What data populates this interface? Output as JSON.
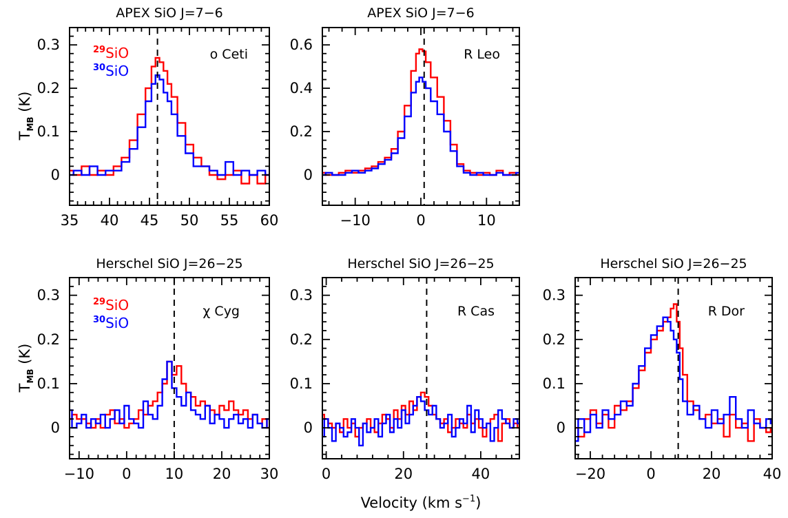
{
  "colors": {
    "si29": "#ff0000",
    "si30": "#0000ff",
    "frame": "#000000"
  },
  "labels": {
    "ylabel": "T",
    "ylabel_sub": "MB",
    "ylabel_unit": " (K)",
    "xlabel": "Velocity (km s",
    "xlabel_sup": "−1",
    "xlabel_end": ")",
    "iso29_mass": "29",
    "iso30_mass": "30",
    "iso_name": "SiO"
  },
  "chart_data": [
    {
      "type": "line",
      "step": true,
      "title": "APEX SiO J=7−6",
      "star": "o Ceti",
      "xlim": [
        35,
        60
      ],
      "ylim": [
        -0.07,
        0.34
      ],
      "xticks": [
        35,
        40,
        45,
        50,
        55,
        60
      ],
      "yticks": [
        0,
        0.1,
        0.2,
        0.3
      ],
      "xticklabels": [
        "35",
        "40",
        "45",
        "50",
        "55",
        "60"
      ],
      "yticklabels": [
        "0",
        "0.1",
        "0.2",
        "0.3"
      ],
      "vline": 46.0,
      "legend": true,
      "series": [
        {
          "name": "29SiO",
          "x": [
            35,
            36,
            37,
            38,
            39,
            40,
            41,
            42,
            43,
            44,
            45,
            45.5,
            46,
            46.5,
            47,
            47.5,
            48,
            49,
            50,
            51,
            52,
            53,
            54,
            55,
            56,
            57,
            58,
            59,
            60
          ],
          "y": [
            0.01,
            0.0,
            0.02,
            0.0,
            0.01,
            0.0,
            0.02,
            0.04,
            0.08,
            0.14,
            0.2,
            0.25,
            0.27,
            0.26,
            0.24,
            0.21,
            0.18,
            0.12,
            0.07,
            0.04,
            0.02,
            0.0,
            -0.01,
            0.0,
            0.01,
            -0.02,
            0.0,
            -0.02,
            0.0
          ]
        },
        {
          "name": "30SiO",
          "x": [
            35,
            36,
            37,
            38,
            39,
            40,
            41,
            42,
            43,
            44,
            45,
            45.5,
            46,
            46.5,
            47,
            47.5,
            48,
            49,
            50,
            51,
            52,
            53,
            54,
            55,
            56,
            57,
            58,
            59,
            60
          ],
          "y": [
            0.0,
            0.01,
            0.0,
            0.02,
            0.0,
            0.01,
            0.01,
            0.03,
            0.06,
            0.11,
            0.17,
            0.21,
            0.23,
            0.22,
            0.19,
            0.17,
            0.14,
            0.09,
            0.05,
            0.02,
            0.02,
            0.01,
            0.0,
            0.03,
            0.0,
            0.01,
            0.0,
            0.01,
            0.0
          ]
        }
      ]
    },
    {
      "type": "line",
      "step": true,
      "title": "APEX SiO J=7−6",
      "star": "R Leo",
      "xlim": [
        -15,
        15
      ],
      "ylim": [
        -0.14,
        0.68
      ],
      "xticks": [
        -10,
        0,
        10
      ],
      "yticks": [
        0,
        0.2,
        0.4,
        0.6
      ],
      "xticklabels": [
        "−10",
        "0",
        "10"
      ],
      "yticklabels": [
        "0",
        "0.2",
        "0.4",
        "0.6"
      ],
      "vline": 0.5,
      "legend": false,
      "series": [
        {
          "name": "29SiO",
          "x": [
            -15,
            -14,
            -13,
            -12,
            -11,
            -10,
            -9,
            -8,
            -7,
            -6,
            -5,
            -4,
            -3,
            -2,
            -1,
            -0.5,
            0,
            0.5,
            1,
            2,
            3,
            4,
            5,
            6,
            7,
            8,
            9,
            10,
            11,
            12,
            13,
            14,
            15
          ],
          "y": [
            0.01,
            0.0,
            0.0,
            0.01,
            0.02,
            0.01,
            0.02,
            0.03,
            0.04,
            0.06,
            0.08,
            0.12,
            0.2,
            0.32,
            0.48,
            0.56,
            0.58,
            0.57,
            0.52,
            0.45,
            0.36,
            0.25,
            0.14,
            0.05,
            0.02,
            0.01,
            0.0,
            0.01,
            0.0,
            0.02,
            0.0,
            0.01,
            0.0
          ]
        },
        {
          "name": "30SiO",
          "x": [
            -15,
            -14,
            -13,
            -12,
            -11,
            -10,
            -9,
            -8,
            -7,
            -6,
            -5,
            -4,
            -3,
            -2,
            -1,
            -0.5,
            0,
            0.5,
            1,
            2,
            3,
            4,
            5,
            6,
            7,
            8,
            9,
            10,
            11,
            12,
            13,
            14,
            15
          ],
          "y": [
            0.0,
            0.01,
            0.0,
            0.0,
            0.01,
            0.02,
            0.01,
            0.02,
            0.03,
            0.05,
            0.07,
            0.1,
            0.17,
            0.27,
            0.38,
            0.43,
            0.45,
            0.43,
            0.4,
            0.34,
            0.28,
            0.2,
            0.11,
            0.04,
            0.01,
            0.0,
            0.01,
            0.0,
            0.0,
            0.01,
            0.0,
            0.0,
            0.01
          ]
        }
      ]
    },
    {
      "type": "line",
      "step": true,
      "title": "Herschel SiO J=26−25",
      "star": "χ Cyg",
      "xlim": [
        -12,
        30
      ],
      "ylim": [
        -0.07,
        0.34
      ],
      "xticks": [
        -10,
        0,
        10,
        20,
        30
      ],
      "yticks": [
        0,
        0.1,
        0.2,
        0.3
      ],
      "xticklabels": [
        "−10",
        "0",
        "10",
        "20",
        "30"
      ],
      "yticklabels": [
        "0",
        "0.1",
        "0.2",
        "0.3"
      ],
      "vline": 10,
      "legend": true,
      "series": [
        {
          "name": "29SiO",
          "x": [
            -12,
            -11,
            -10,
            -9,
            -8,
            -7,
            -6,
            -5,
            -4,
            -3,
            -2,
            -1,
            0,
            1,
            2,
            3,
            4,
            5,
            6,
            7,
            8,
            9,
            10,
            11,
            12,
            13,
            14,
            15,
            16,
            17,
            18,
            19,
            20,
            21,
            22,
            23,
            24,
            25,
            26,
            27,
            28,
            29,
            30
          ],
          "y": [
            0.02,
            0.03,
            0.02,
            0.02,
            0.01,
            0.0,
            0.02,
            0.0,
            0.03,
            0.04,
            0.01,
            0.02,
            0.0,
            0.01,
            0.02,
            0.04,
            0.03,
            0.05,
            0.06,
            0.08,
            0.1,
            0.15,
            0.12,
            0.14,
            0.1,
            0.08,
            0.07,
            0.05,
            0.06,
            0.05,
            0.04,
            0.03,
            0.05,
            0.04,
            0.06,
            0.04,
            0.03,
            0.04,
            0.02,
            0.03,
            0.01,
            0.02,
            0.0
          ]
        },
        {
          "name": "30SiO",
          "x": [
            -12,
            -11,
            -10,
            -9,
            -8,
            -7,
            -6,
            -5,
            -4,
            -3,
            -2,
            -1,
            0,
            1,
            2,
            3,
            4,
            5,
            6,
            7,
            8,
            9,
            10,
            11,
            12,
            13,
            14,
            15,
            16,
            17,
            18,
            19,
            20,
            21,
            22,
            23,
            24,
            25,
            26,
            27,
            28,
            29,
            30
          ],
          "y": [
            0.04,
            0.0,
            0.01,
            0.03,
            0.0,
            0.02,
            0.01,
            0.03,
            0.0,
            0.02,
            0.04,
            0.01,
            0.05,
            0.02,
            0.01,
            0.0,
            0.06,
            0.03,
            0.02,
            0.05,
            0.11,
            0.15,
            0.09,
            0.07,
            0.05,
            0.08,
            0.04,
            0.03,
            0.02,
            0.05,
            0.01,
            0.03,
            0.02,
            0.0,
            0.02,
            0.03,
            0.01,
            0.02,
            0.0,
            0.03,
            0.01,
            0.0,
            0.02
          ]
        }
      ]
    },
    {
      "type": "line",
      "step": true,
      "title": "Herschel SiO J=26−25",
      "star": "R Cas",
      "xlim": [
        -1,
        50
      ],
      "ylim": [
        -0.07,
        0.34
      ],
      "xticks": [
        0,
        20,
        40
      ],
      "yticks": [
        0,
        0.1,
        0.2,
        0.3
      ],
      "xticklabels": [
        "0",
        "20",
        "40"
      ],
      "yticklabels": [
        "0",
        "0.1",
        "0.2",
        "0.3"
      ],
      "vline": 26,
      "legend": false,
      "series": [
        {
          "name": "29SiO",
          "x": [
            -1,
            0,
            1,
            2,
            3,
            4,
            5,
            6,
            7,
            8,
            9,
            10,
            11,
            12,
            13,
            14,
            15,
            16,
            17,
            18,
            19,
            20,
            21,
            22,
            23,
            24,
            25,
            26,
            27,
            28,
            29,
            30,
            31,
            32,
            33,
            34,
            35,
            36,
            37,
            38,
            39,
            40,
            41,
            42,
            43,
            44,
            45,
            46,
            47,
            48,
            49,
            50
          ],
          "y": [
            0.03,
            0.02,
            0.01,
            0.0,
            0.01,
            -0.01,
            0.02,
            0.0,
            0.01,
            -0.02,
            0.0,
            0.01,
            0.02,
            0.0,
            -0.01,
            0.01,
            0.03,
            0.02,
            0.0,
            0.04,
            0.02,
            0.05,
            0.03,
            0.06,
            0.04,
            0.07,
            0.08,
            0.07,
            0.05,
            0.03,
            0.02,
            0.01,
            0.02,
            -0.01,
            0.0,
            0.02,
            0.01,
            0.0,
            0.03,
            0.01,
            0.02,
            0.0,
            -0.02,
            0.01,
            0.02,
            0.03,
            -0.03,
            0.01,
            0.02,
            0.0,
            0.01,
            0.0
          ]
        },
        {
          "name": "30SiO",
          "x": [
            -1,
            0,
            1,
            2,
            3,
            4,
            5,
            6,
            7,
            8,
            9,
            10,
            11,
            12,
            13,
            14,
            15,
            16,
            17,
            18,
            19,
            20,
            21,
            22,
            23,
            24,
            25,
            26,
            27,
            28,
            29,
            30,
            31,
            32,
            33,
            34,
            35,
            36,
            37,
            38,
            39,
            40,
            41,
            42,
            43,
            44,
            45,
            46,
            47,
            48,
            49,
            50
          ],
          "y": [
            -0.02,
            0.02,
            0.0,
            -0.03,
            0.01,
            0.0,
            -0.02,
            -0.01,
            0.02,
            0.0,
            -0.04,
            0.01,
            -0.01,
            0.0,
            0.02,
            -0.02,
            0.01,
            0.03,
            -0.01,
            0.02,
            0.0,
            0.04,
            0.01,
            0.03,
            0.05,
            0.07,
            0.06,
            0.04,
            0.03,
            0.05,
            0.02,
            0.0,
            0.01,
            0.03,
            -0.02,
            0.0,
            0.02,
            0.01,
            0.05,
            -0.01,
            0.04,
            0.02,
            0.0,
            0.01,
            -0.03,
            0.0,
            0.04,
            0.02,
            0.01,
            0.0,
            0.02,
            0.01
          ]
        }
      ]
    },
    {
      "type": "line",
      "step": true,
      "title": "Herschel SiO J=26−25",
      "star": "R Dor",
      "xlim": [
        -25,
        40
      ],
      "ylim": [
        -0.07,
        0.34
      ],
      "xticks": [
        -20,
        0,
        20,
        40
      ],
      "yticks": [
        0,
        0.1,
        0.2,
        0.3
      ],
      "xticklabels": [
        "−20",
        "0",
        "20",
        "40"
      ],
      "yticklabels": [
        "0",
        "0.1",
        "0.2",
        "0.3"
      ],
      "vline": 9,
      "legend": false,
      "series": [
        {
          "name": "29SiO",
          "x": [
            -25,
            -23,
            -21,
            -19,
            -17,
            -15,
            -13,
            -11,
            -9,
            -7,
            -5,
            -3,
            -1,
            1,
            3,
            5,
            6,
            7,
            8,
            9,
            10,
            11,
            13,
            15,
            17,
            19,
            21,
            23,
            25,
            27,
            29,
            31,
            33,
            35,
            37,
            39,
            40
          ],
          "y": [
            0.0,
            -0.02,
            0.02,
            0.04,
            0.01,
            0.03,
            0.0,
            0.05,
            0.04,
            0.06,
            0.09,
            0.13,
            0.17,
            0.2,
            0.22,
            0.24,
            0.25,
            0.27,
            0.28,
            0.24,
            0.18,
            0.12,
            0.06,
            0.04,
            0.02,
            0.03,
            0.01,
            0.02,
            -0.02,
            0.03,
            0.0,
            0.01,
            -0.03,
            0.02,
            0.0,
            -0.01,
            0.0
          ]
        },
        {
          "name": "30SiO",
          "x": [
            -25,
            -23,
            -21,
            -19,
            -17,
            -15,
            -13,
            -11,
            -9,
            -7,
            -5,
            -3,
            -1,
            1,
            3,
            5,
            6,
            7,
            8,
            9,
            10,
            11,
            13,
            15,
            17,
            19,
            21,
            23,
            25,
            27,
            29,
            31,
            33,
            35,
            37,
            39,
            40
          ],
          "y": [
            -0.03,
            0.02,
            -0.01,
            0.03,
            0.0,
            0.04,
            0.02,
            0.03,
            0.06,
            0.05,
            0.1,
            0.14,
            0.18,
            0.21,
            0.23,
            0.25,
            0.24,
            0.22,
            0.2,
            0.17,
            0.11,
            0.06,
            0.03,
            0.05,
            0.02,
            0.0,
            0.04,
            0.01,
            0.03,
            0.07,
            0.02,
            0.0,
            0.04,
            0.01,
            0.0,
            0.02,
            0.01
          ]
        }
      ]
    }
  ]
}
